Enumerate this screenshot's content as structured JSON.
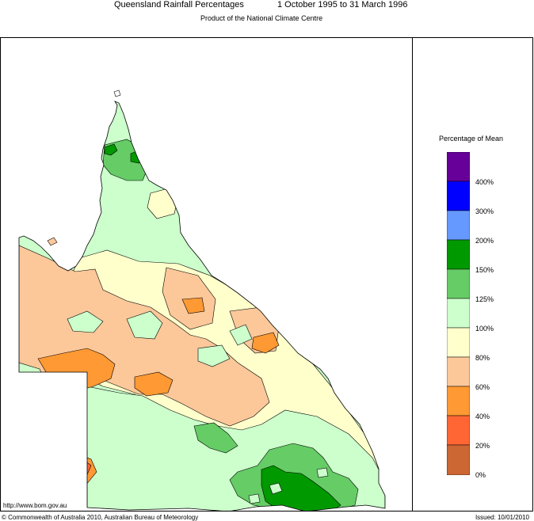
{
  "header": {
    "title": "Queensland Rainfall Percentages",
    "period": "1 October 1995 to 31 March 1996",
    "subtitle": "Product of the National Climate Centre"
  },
  "legend": {
    "title": "Percentage of Mean",
    "labels": [
      "400%",
      "300%",
      "200%",
      "150%",
      "125%",
      "100%",
      "80%",
      "60%",
      "40%",
      "20%",
      "0%"
    ],
    "colors": {
      "0_20": "#cc6633",
      "20_40": "#ff6633",
      "40_60": "#ff9933",
      "60_80": "#fcc89a",
      "80_100": "#ffffcc",
      "100_125": "#ccffcc",
      "125_150": "#66cc66",
      "150_200": "#009900",
      "200_300": "#6699ff",
      "300_400": "#0000ff",
      "400_plus": "#660099"
    }
  },
  "footer": {
    "url": "http://www.bom.gov.au",
    "copyright": "© Commonwealth of Australia 2010, Australian Bureau of Meteorology",
    "issued": "Issued: 10/01/2010"
  }
}
